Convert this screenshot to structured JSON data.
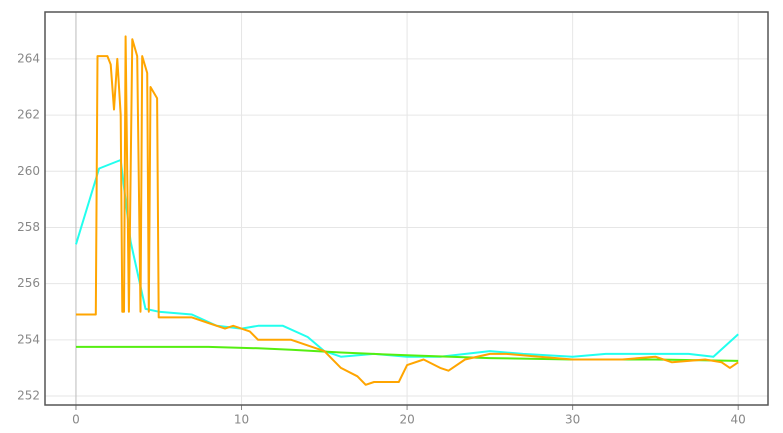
{
  "chart_data": {
    "type": "line",
    "grid": true,
    "xlim": [
      -1.87,
      41.8
    ],
    "ylim": [
      251.68,
      265.67
    ],
    "xticks": [
      0,
      10,
      20,
      30,
      40
    ],
    "yticks": [
      252,
      254,
      256,
      258,
      260,
      262,
      264
    ],
    "series": [
      {
        "color": "#22ffee",
        "x": [
          0,
          1.4,
          2.7,
          3.3,
          4.2,
          5,
          7,
          8.5,
          10,
          11,
          12.5,
          14,
          15,
          16,
          18,
          20,
          22,
          25,
          27,
          30,
          32,
          35,
          37,
          38.5,
          40
        ],
        "values": [
          257.4,
          260.1,
          260.4,
          257.5,
          255.1,
          255.0,
          254.9,
          254.5,
          254.4,
          254.5,
          254.5,
          254.1,
          253.6,
          253.4,
          253.5,
          253.4,
          253.4,
          253.6,
          253.5,
          253.4,
          253.5,
          253.5,
          253.5,
          253.4,
          254.2
        ]
      },
      {
        "color": "#55ee11",
        "x": [
          0,
          5,
          8,
          11,
          13,
          16,
          20,
          25,
          30,
          35,
          40
        ],
        "values": [
          253.75,
          253.75,
          253.75,
          253.7,
          253.65,
          253.55,
          253.45,
          253.35,
          253.3,
          253.3,
          253.25
        ]
      },
      {
        "color": "#ffa500",
        "x": [
          0,
          1.2,
          1.3,
          1.9,
          2.1,
          2.3,
          2.5,
          2.7,
          2.8,
          2.9,
          3.0,
          3.2,
          3.4,
          3.7,
          3.9,
          4.0,
          4.3,
          4.4,
          4.5,
          4.9,
          5.0,
          5.5,
          7,
          8,
          9,
          9.5,
          10.5,
          11,
          12,
          13,
          14,
          15,
          16,
          17,
          17.5,
          18,
          19.5,
          20,
          21,
          22,
          22.5,
          23.5,
          25,
          26,
          28,
          30,
          33,
          35,
          36,
          38,
          39,
          39.5,
          40
        ],
        "values": [
          254.9,
          254.9,
          264.1,
          264.1,
          263.8,
          262.2,
          264.0,
          262.0,
          255.0,
          255.0,
          264.8,
          255.0,
          264.7,
          264.1,
          255.0,
          264.1,
          263.5,
          255.0,
          263.0,
          262.6,
          254.8,
          254.8,
          254.8,
          254.6,
          254.4,
          254.5,
          254.3,
          254.0,
          254.0,
          254.0,
          253.8,
          253.6,
          253.0,
          252.7,
          252.4,
          252.5,
          252.5,
          253.1,
          253.3,
          253.0,
          252.9,
          253.3,
          253.5,
          253.5,
          253.4,
          253.3,
          253.3,
          253.4,
          253.2,
          253.3,
          253.2,
          253.0,
          253.2
        ]
      }
    ]
  }
}
